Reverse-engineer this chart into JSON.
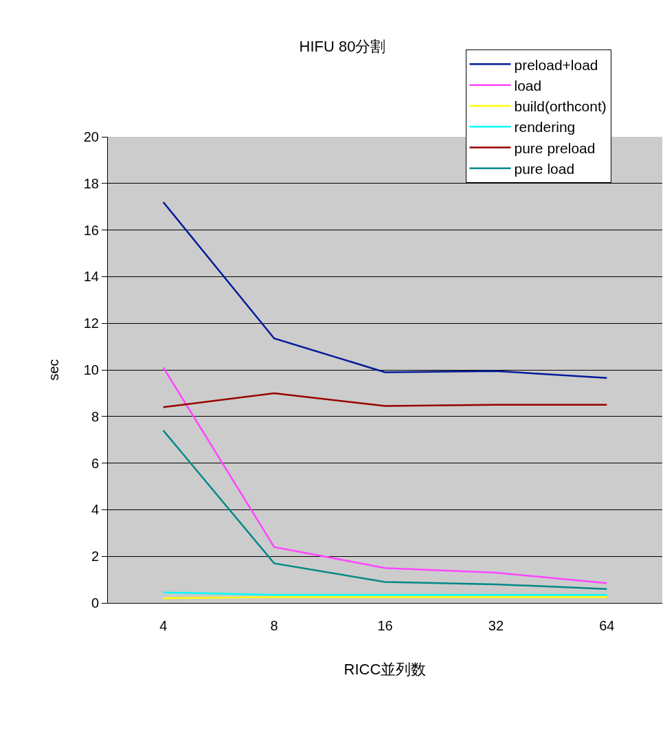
{
  "chart_data": {
    "type": "line",
    "title": "HIFU 80分割",
    "xlabel": "RICC並列数",
    "ylabel": "sec",
    "categories": [
      "4",
      "8",
      "16",
      "32",
      "64"
    ],
    "series": [
      {
        "name": "preload+load",
        "color": "#001a99",
        "values": [
          17.2,
          11.35,
          9.9,
          9.95,
          9.65
        ]
      },
      {
        "name": "load",
        "color": "#ff44ff",
        "values": [
          10.1,
          2.4,
          1.5,
          1.3,
          0.85
        ]
      },
      {
        "name": "build(orthcont)",
        "color": "#ffff00",
        "values": [
          0.2,
          0.25,
          0.25,
          0.25,
          0.25
        ]
      },
      {
        "name": "rendering",
        "color": "#00ffff",
        "values": [
          0.45,
          0.35,
          0.35,
          0.35,
          0.35
        ]
      },
      {
        "name": "pure preload",
        "color": "#990000",
        "values": [
          8.4,
          9.0,
          8.45,
          8.5,
          8.5
        ]
      },
      {
        "name": "pure load",
        "color": "#008888",
        "values": [
          7.4,
          1.7,
          0.9,
          0.8,
          0.6
        ]
      }
    ],
    "ylim": [
      0,
      20
    ],
    "yticks": [
      0,
      2,
      4,
      6,
      8,
      10,
      12,
      14,
      16,
      18,
      20
    ],
    "grid": "y",
    "legend": "top right",
    "marker": "none",
    "line_style": "solid"
  }
}
